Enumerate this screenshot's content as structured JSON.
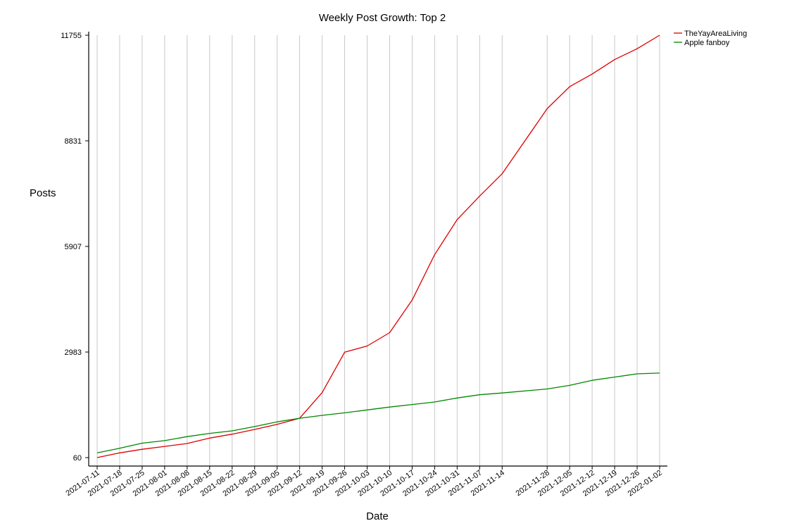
{
  "chart_data": {
    "type": "line",
    "title": "Weekly Post Growth: Top 2",
    "xlabel": "Date",
    "ylabel": "Posts",
    "ylim": [
      60,
      11755
    ],
    "yticks": [
      60,
      2983,
      5907,
      8831,
      11755
    ],
    "grid": "vertical",
    "legend_position": "top-right",
    "x": [
      "2021-07-11",
      "2021-07-18",
      "2021-07-25",
      "2021-08-01",
      "2021-08-08",
      "2021-08-15",
      "2021-08-22",
      "2021-08-29",
      "2021-09-05",
      "2021-09-12",
      "2021-09-19",
      "2021-09-26",
      "2021-10-03",
      "2021-10-10",
      "2021-10-17",
      "2021-10-24",
      "2021-10-31",
      "2021-11-07",
      "2021-11-14",
      "2021-11-28",
      "2021-12-05",
      "2021-12-12",
      "2021-12-19",
      "2021-12-26",
      "2022-01-02"
    ],
    "series": [
      {
        "name": "TheYayAreaLiving",
        "color": "#dd0000",
        "values": [
          60,
          190,
          290,
          370,
          450,
          600,
          710,
          840,
          980,
          1150,
          1860,
          2980,
          3150,
          3520,
          4420,
          5680,
          6650,
          7300,
          7920,
          9720,
          10330,
          10680,
          11080,
          11380,
          11755
        ]
      },
      {
        "name": "Apple fanboy",
        "color": "#008800",
        "values": [
          190,
          320,
          460,
          530,
          640,
          730,
          800,
          920,
          1050,
          1150,
          1230,
          1300,
          1380,
          1460,
          1530,
          1600,
          1710,
          1800,
          1850,
          1960,
          2060,
          2200,
          2290,
          2380,
          2400
        ]
      }
    ]
  }
}
